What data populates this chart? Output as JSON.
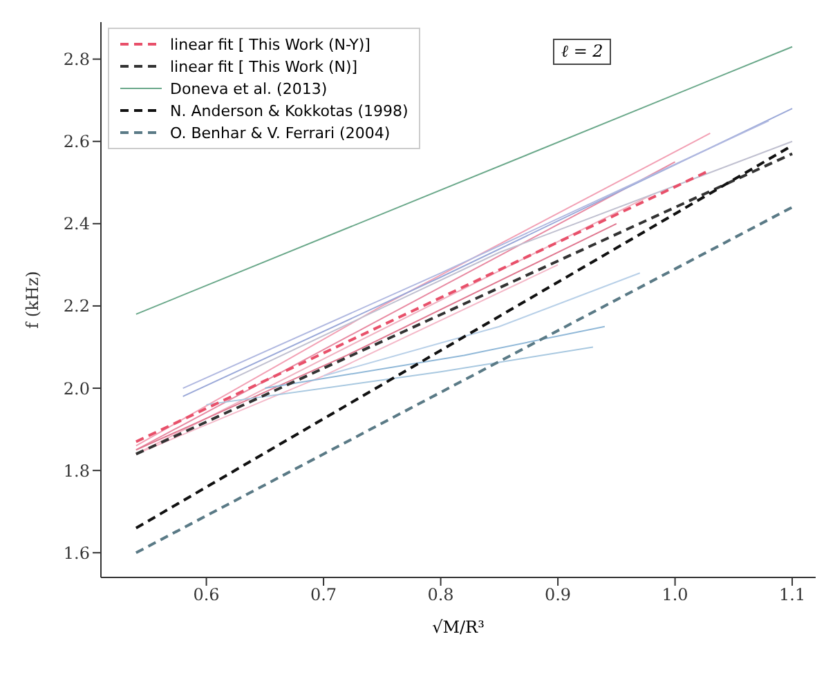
{
  "chart_data": {
    "type": "line",
    "xlabel": "√M/R³",
    "ylabel": "f (kHz)",
    "annotations": [
      "ℓ = 2"
    ],
    "xlim": [
      0.51,
      1.12
    ],
    "ylim": [
      1.54,
      2.89
    ],
    "xticks": [
      {
        "value": 0.6,
        "label": "0.6"
      },
      {
        "value": 0.7,
        "label": "0.7"
      },
      {
        "value": 0.8,
        "label": "0.8"
      },
      {
        "value": 0.9,
        "label": "0.9"
      },
      {
        "value": 1.0,
        "label": "1.0"
      },
      {
        "value": 1.1,
        "label": "1.1"
      }
    ],
    "yticks": [
      {
        "value": 1.6,
        "label": "1.6"
      },
      {
        "value": 1.8,
        "label": "1.8"
      },
      {
        "value": 2.0,
        "label": "2.0"
      },
      {
        "value": 2.2,
        "label": "2.2"
      },
      {
        "value": 2.4,
        "label": "2.4"
      },
      {
        "value": 2.6,
        "label": "2.6"
      },
      {
        "value": 2.8,
        "label": "2.8"
      }
    ],
    "grid": false,
    "legend": "top left",
    "marker": "none",
    "line_style": "solid",
    "series": [
      {
        "color": "#f2a0b4",
        "x": [
          0.54,
          0.75,
          1.03
        ],
        "values": [
          1.86,
          2.2,
          2.62
        ]
      },
      {
        "color": "#e88aa2",
        "x": [
          0.54,
          0.75,
          1.0
        ],
        "values": [
          1.85,
          2.17,
          2.55
        ]
      },
      {
        "color": "#f0b0c0",
        "x": [
          0.54,
          0.72,
          0.98
        ],
        "values": [
          1.84,
          2.1,
          2.47
        ]
      },
      {
        "color": "#e07890",
        "x": [
          0.54,
          0.72,
          0.95
        ],
        "values": [
          1.85,
          2.08,
          2.4
        ]
      },
      {
        "color": "#f4b8c8",
        "x": [
          0.54,
          0.7,
          0.9
        ],
        "values": [
          1.84,
          2.03,
          2.3
        ]
      },
      {
        "color": "#9aa8d8",
        "x": [
          0.58,
          0.8,
          1.1
        ],
        "values": [
          1.98,
          2.27,
          2.68
        ]
      },
      {
        "color": "#b0b8e0",
        "x": [
          0.58,
          0.8,
          1.08
        ],
        "values": [
          2.0,
          2.28,
          2.65
        ]
      },
      {
        "color": "#c0c0d0",
        "x": [
          0.62,
          0.85,
          1.1
        ],
        "values": [
          2.02,
          2.33,
          2.6
        ]
      },
      {
        "color": "#a8c8e0",
        "x": [
          0.6,
          0.8,
          0.93
        ],
        "values": [
          1.96,
          2.04,
          2.1
        ]
      },
      {
        "color": "#90b8d8",
        "x": [
          0.65,
          0.82,
          0.94
        ],
        "values": [
          2.0,
          2.08,
          2.15
        ]
      },
      {
        "color": "#b8d0e8",
        "x": [
          0.7,
          0.85,
          0.97
        ],
        "values": [
          2.03,
          2.15,
          2.28
        ]
      },
      {
        "name": "linear fit [ This Work (N-Y)]",
        "color": "#e8506a",
        "line_style": "dashed",
        "x": [
          0.54,
          1.03
        ],
        "values": [
          1.87,
          2.53
        ]
      },
      {
        "name": "linear fit [ This Work (N)]",
        "color": "#333333",
        "line_style": "dashed",
        "x": [
          0.54,
          1.1
        ],
        "values": [
          1.84,
          2.57
        ]
      },
      {
        "name": "Doneva et al. (2013)",
        "color": "#6aa88a",
        "line_style": "solid",
        "x": [
          0.54,
          1.1
        ],
        "values": [
          2.18,
          2.83
        ]
      },
      {
        "name": "N. Anderson & Kokkotas (1998)",
        "color": "#111111",
        "line_style": "dashed",
        "x": [
          0.54,
          1.1
        ],
        "values": [
          1.66,
          2.59
        ]
      },
      {
        "name": "O. Benhar & V. Ferrari (2004)",
        "color": "#5a7a86",
        "line_style": "dashed",
        "x": [
          0.54,
          1.1
        ],
        "values": [
          1.6,
          2.44
        ]
      }
    ]
  }
}
